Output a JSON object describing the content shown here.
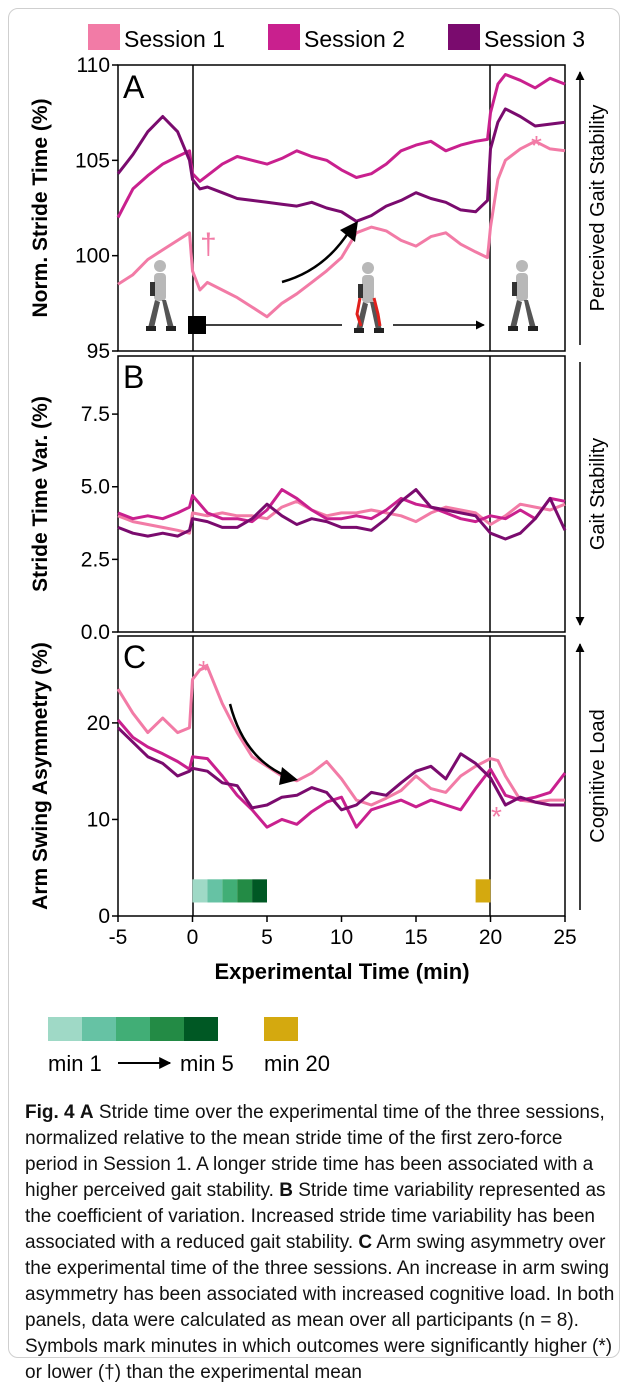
{
  "legend": [
    {
      "name": "Session 1",
      "color": "#f27ba6"
    },
    {
      "name": "Session 2",
      "color": "#c9208e"
    },
    {
      "name": "Session 3",
      "color": "#7a0b6e"
    }
  ],
  "xaxis": {
    "label": "Experimental Time (min)",
    "range": [
      -5,
      25
    ],
    "ticks": [
      "-5",
      "0",
      "5",
      "10",
      "15",
      "20",
      "25"
    ]
  },
  "panels": {
    "A": {
      "letter": "A",
      "ylabel": "Norm. Stride Time (%)",
      "side_label": "Perceived Gait Stability",
      "ticks": [
        "95",
        "100",
        "105",
        "110"
      ],
      "dagger": "†",
      "star": "*"
    },
    "B": {
      "letter": "B",
      "ylabel": "Stride Time Var. (%)",
      "side_label": "Gait Stability",
      "ticks": [
        "0.0",
        "2.5",
        "5.0",
        "7.5"
      ]
    },
    "C": {
      "letter": "C",
      "ylabel": "Arm Swing Asymmetry (%)",
      "side_label": "Cognitive Load",
      "ticks": [
        "0",
        "10",
        "20"
      ],
      "star1": "*",
      "star2": "*"
    }
  },
  "color_key": {
    "min1_label": "min 1",
    "min5_label": "min 5",
    "min20_label": "min 20",
    "green_shades": [
      "#9fd9c6",
      "#66c2a4",
      "#41ae76",
      "#238b45",
      "#005824"
    ],
    "min20_color": "#d4a90f"
  },
  "caption": {
    "fig": "Fig. 4",
    "part_a_letter": "A",
    "part_a": "Stride time over the experimental time of the three sessions, normalized relative to the mean stride time of the first zero-force period in Session 1. A longer stride time has been associated with a higher perceived gait stability.",
    "part_b_letter": "B",
    "part_b": "Stride time variability represented as the coefficient of variation. Increased stride time variability has been associated with a reduced gait stability.",
    "part_c_letter": "C",
    "part_c": "Arm swing asymmetry over the experimental time of the three sessions. An increase in arm swing asymmetry has been associated with increased cognitive load. In both panels, data were calculated as mean over all participants (n = 8). Symbols mark minutes in which outcomes were significantly higher (*) or lower (†) than the experimental mean"
  },
  "chart_data": [
    {
      "type": "line",
      "panel": "A",
      "ylabel": "Norm. Stride Time (%)",
      "xlabel": "Experimental Time (min)",
      "xlim": [
        -5,
        25
      ],
      "ylim": [
        95,
        110
      ],
      "series": [
        {
          "name": "Session 1",
          "color": "#f27ba6",
          "x": [
            -5,
            -4,
            -3,
            -2,
            -1,
            -0.2,
            0,
            0.5,
            1,
            2,
            3,
            4,
            5,
            6,
            7,
            8,
            9,
            10,
            11,
            12,
            13,
            14,
            15,
            16,
            17,
            18,
            19,
            19.8,
            20,
            20.5,
            21,
            22,
            23,
            24,
            25
          ],
          "y": [
            98.5,
            99,
            99.8,
            100.3,
            100.8,
            101.2,
            99.2,
            98.2,
            98.6,
            98.2,
            97.8,
            97.3,
            96.8,
            97.5,
            98,
            98.6,
            99.2,
            99.9,
            101.2,
            101.5,
            101.3,
            100.8,
            100.5,
            101,
            101.2,
            100.6,
            100.2,
            99.9,
            101.5,
            104,
            105,
            105.6,
            106,
            105.6,
            105.5
          ]
        },
        {
          "name": "Session 2",
          "color": "#c9208e",
          "x": [
            -5,
            -4,
            -3,
            -2,
            -1,
            -0.2,
            0,
            0.5,
            1,
            2,
            3,
            4,
            5,
            6,
            7,
            8,
            9,
            10,
            11,
            12,
            13,
            14,
            15,
            16,
            17,
            18,
            19,
            19.8,
            20,
            20.5,
            21,
            22,
            23,
            24,
            25
          ],
          "y": [
            102,
            103.5,
            104.2,
            104.8,
            105.2,
            105.5,
            104.3,
            103.9,
            104.2,
            104.8,
            105.2,
            105,
            104.8,
            105.1,
            105.5,
            105.2,
            105,
            104.5,
            104.1,
            104.3,
            104.8,
            105.5,
            105.8,
            106,
            105.5,
            105.8,
            106,
            106.1,
            107.5,
            109,
            109.5,
            109.2,
            108.8,
            109.3,
            109
          ]
        },
        {
          "name": "Session 3",
          "color": "#7a0b6e",
          "x": [
            -5,
            -4,
            -3,
            -2,
            -1,
            -0.2,
            0,
            0.5,
            1,
            2,
            3,
            4,
            5,
            6,
            7,
            8,
            9,
            10,
            11,
            12,
            13,
            14,
            15,
            16,
            17,
            18,
            19,
            19.8,
            20,
            20.5,
            21,
            22,
            23,
            24,
            25
          ],
          "y": [
            104.3,
            105.3,
            106.5,
            107.3,
            106.5,
            105,
            104,
            103.5,
            103.6,
            103.3,
            103,
            102.9,
            102.8,
            102.7,
            102.6,
            102.8,
            102.5,
            102.3,
            101.8,
            102.1,
            102.6,
            102.9,
            103.3,
            103,
            102.8,
            102.4,
            102.3,
            102.9,
            105.6,
            107,
            107.7,
            107.3,
            106.8,
            106.9,
            107
          ]
        }
      ]
    },
    {
      "type": "line",
      "panel": "B",
      "ylabel": "Stride Time Var. (%)",
      "xlabel": "Experimental Time (min)",
      "xlim": [
        -5,
        25
      ],
      "ylim": [
        0,
        9.5
      ],
      "series": [
        {
          "name": "Session 1",
          "color": "#f27ba6",
          "x": [
            -5,
            -4,
            -3,
            -2,
            -1,
            -0.2,
            0,
            1,
            2,
            3,
            4,
            5,
            6,
            7,
            8,
            9,
            10,
            11,
            12,
            13,
            14,
            15,
            16,
            17,
            18,
            19,
            20,
            21,
            22,
            23,
            24,
            25
          ],
          "y": [
            4,
            3.8,
            3.7,
            3.6,
            3.5,
            3.4,
            4.1,
            4,
            4.1,
            4,
            4,
            3.9,
            4.3,
            4.5,
            4.2,
            4,
            4.1,
            4.1,
            4.2,
            4.1,
            4,
            3.8,
            4.1,
            4.3,
            4.2,
            4.1,
            3.7,
            4,
            4.4,
            4.3,
            4.2,
            4.4
          ]
        },
        {
          "name": "Session 2",
          "color": "#c9208e",
          "x": [
            -5,
            -4,
            -3,
            -2,
            -1,
            -0.2,
            0,
            1,
            2,
            3,
            4,
            5,
            6,
            7,
            8,
            9,
            10,
            11,
            12,
            13,
            14,
            15,
            16,
            17,
            18,
            19,
            20,
            21,
            22,
            23,
            24,
            25
          ],
          "y": [
            4.1,
            3.9,
            4,
            3.9,
            4.1,
            4.3,
            4.7,
            4.1,
            3.9,
            3.9,
            3.8,
            4.2,
            4.9,
            4.6,
            4.2,
            3.9,
            3.9,
            4,
            3.9,
            4.2,
            4.6,
            4.4,
            4.3,
            4.1,
            3.9,
            3.8,
            4,
            3.9,
            4.2,
            3.9,
            4.6,
            4.5
          ]
        },
        {
          "name": "Session 3",
          "color": "#7a0b6e",
          "x": [
            -5,
            -4,
            -3,
            -2,
            -1,
            -0.2,
            0,
            1,
            2,
            3,
            4,
            5,
            6,
            7,
            8,
            9,
            10,
            11,
            12,
            13,
            14,
            15,
            16,
            17,
            18,
            19,
            20,
            21,
            22,
            23,
            24,
            25
          ],
          "y": [
            3.6,
            3.4,
            3.3,
            3.4,
            3.3,
            3.5,
            3.9,
            3.8,
            3.6,
            3.6,
            3.9,
            4.4,
            4,
            3.7,
            3.9,
            3.8,
            3.6,
            3.6,
            3.5,
            3.9,
            4.5,
            4.9,
            4.3,
            4.2,
            4.1,
            4,
            3.4,
            3.2,
            3.4,
            3.9,
            4.6,
            3.5
          ]
        }
      ]
    },
    {
      "type": "line",
      "panel": "C",
      "ylabel": "Arm Swing Asymmetry (%)",
      "xlabel": "Experimental Time (min)",
      "xlim": [
        -5,
        25
      ],
      "ylim": [
        0,
        29
      ],
      "series": [
        {
          "name": "Session 1",
          "color": "#f27ba6",
          "x": [
            -5,
            -4,
            -3,
            -2,
            -1,
            -0.2,
            0,
            0.5,
            1,
            2,
            3,
            4,
            5,
            6,
            7,
            8,
            9,
            10,
            11,
            12,
            13,
            14,
            15,
            16,
            17,
            18,
            19,
            20,
            20.5,
            21,
            22,
            23,
            24,
            25
          ],
          "y": [
            23.5,
            21,
            19,
            20.5,
            19,
            19.5,
            24.5,
            25.5,
            25.8,
            22,
            19,
            16.5,
            15.5,
            14.5,
            14,
            14.8,
            16,
            14.2,
            12,
            11.5,
            12.2,
            13,
            14.5,
            13.2,
            12.8,
            14.5,
            15.5,
            16.3,
            16.1,
            14.5,
            12,
            11.8,
            12,
            12
          ]
        },
        {
          "name": "Session 2",
          "color": "#c9208e",
          "x": [
            -5,
            -4,
            -3,
            -2,
            -1,
            -0.2,
            0,
            1,
            2,
            3,
            4,
            5,
            6,
            7,
            8,
            9,
            10,
            11,
            12,
            13,
            14,
            15,
            16,
            17,
            18,
            19,
            20,
            21,
            22,
            23,
            24,
            25
          ],
          "y": [
            20.3,
            18.5,
            17.5,
            16.8,
            16,
            15.2,
            16.5,
            16.3,
            14.5,
            12.5,
            11,
            9.2,
            10,
            9.5,
            10.8,
            11.8,
            12.3,
            9.2,
            11,
            11.5,
            12,
            11.3,
            12,
            11.5,
            11,
            13.2,
            15.2,
            12.5,
            12,
            12.3,
            12.8,
            14.8
          ]
        },
        {
          "name": "Session 3",
          "color": "#7a0b6e",
          "x": [
            -5,
            -4,
            -3,
            -2,
            -1,
            -0.2,
            0,
            1,
            2,
            3,
            4,
            5,
            6,
            7,
            8,
            9,
            10,
            11,
            12,
            13,
            14,
            15,
            16,
            17,
            18,
            19,
            20,
            21,
            22,
            23,
            24,
            25
          ],
          "y": [
            19.5,
            18,
            16.5,
            15.8,
            14.5,
            15,
            15.3,
            15,
            13.8,
            13.5,
            11.2,
            11.5,
            12.3,
            12.5,
            13.3,
            12.8,
            11,
            11.5,
            12.8,
            12.5,
            13.8,
            15,
            15.5,
            14.2,
            16.8,
            15.8,
            14.3,
            11.5,
            12.3,
            11.8,
            11.5,
            11.5
          ]
        }
      ]
    }
  ]
}
